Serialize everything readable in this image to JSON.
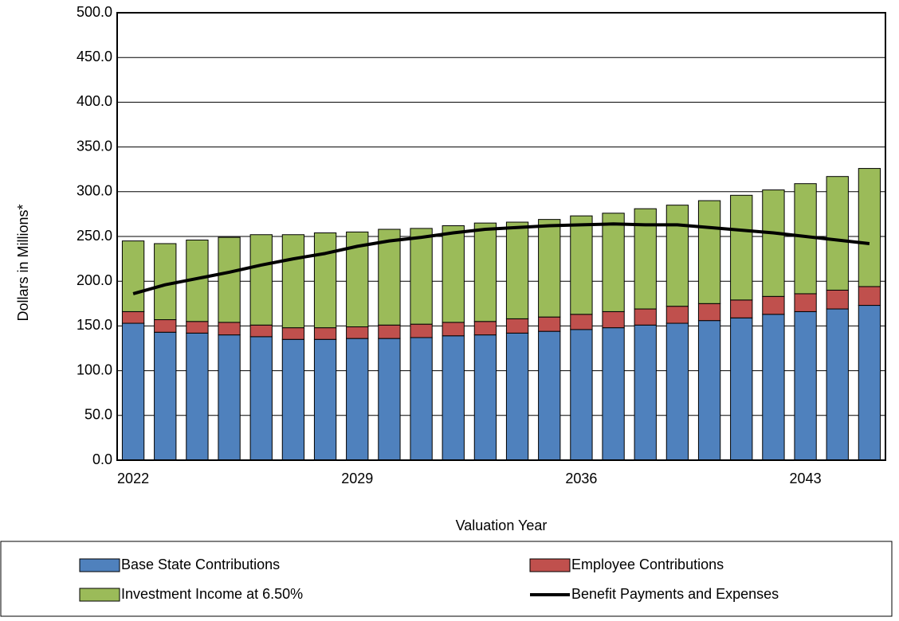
{
  "chart_data": {
    "type": "bar",
    "stacked": true,
    "grid": true,
    "y_label": "Dollars in Millions*",
    "x_label": "Valuation Year",
    "categories": [
      "2022",
      null,
      null,
      null,
      null,
      null,
      null,
      "2029",
      null,
      null,
      null,
      null,
      null,
      null,
      "2036",
      null,
      null,
      null,
      null,
      null,
      null,
      "2043",
      null,
      null
    ],
    "ylim": [
      0,
      500
    ],
    "yticks": [
      {
        "value": 0,
        "label": "0.0"
      },
      {
        "value": 50,
        "label": "50.0"
      },
      {
        "value": 100,
        "label": "100.0"
      },
      {
        "value": 150,
        "label": "150.0"
      },
      {
        "value": 200,
        "label": "200.0"
      },
      {
        "value": 250,
        "label": "250.0"
      },
      {
        "value": 300,
        "label": "300.0"
      },
      {
        "value": 350,
        "label": "350.0"
      },
      {
        "value": 400,
        "label": "400.0"
      },
      {
        "value": 450,
        "label": "450.0"
      },
      {
        "value": 500,
        "label": "500.0"
      }
    ],
    "series": [
      {
        "name": "Base State Contributions",
        "color": "#4f81bd",
        "values": [
          153,
          143,
          142,
          140,
          138,
          135,
          135,
          136,
          136,
          137,
          139,
          140,
          142,
          144,
          146,
          148,
          151,
          153,
          156,
          159,
          163,
          166,
          169,
          173
        ]
      },
      {
        "name": "Employee Contributions",
        "color": "#c0504d",
        "values": [
          13,
          14,
          13,
          14,
          13,
          13,
          13,
          13,
          15,
          15,
          15,
          15,
          16,
          16,
          17,
          18,
          18,
          19,
          19,
          20,
          20,
          20,
          21,
          21
        ]
      },
      {
        "name": "Investment Income at 6.50%",
        "color": "#9bbb59",
        "values": [
          79,
          85,
          91,
          95,
          101,
          104,
          106,
          106,
          107,
          107,
          108,
          110,
          108,
          109,
          110,
          110,
          112,
          113,
          115,
          117,
          119,
          123,
          127,
          132
        ]
      },
      {
        "name": "Benefit Payments and Expenses",
        "color": "#000000",
        "type": "line",
        "values": [
          186,
          196,
          203,
          210,
          218,
          225,
          231,
          239,
          245,
          249,
          254,
          258,
          260,
          262,
          263,
          264,
          263,
          263,
          260,
          257,
          254,
          250,
          246,
          242
        ]
      }
    ]
  }
}
